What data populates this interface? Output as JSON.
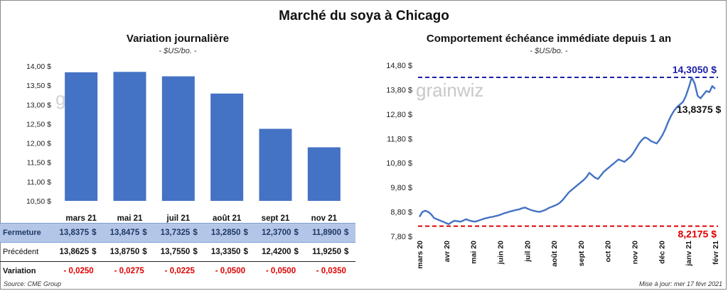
{
  "title": "Marché du soya à Chicago",
  "left_panel": {
    "subtitle": "Variation  journalière",
    "unit": "- $US/bo. -",
    "watermark": "grain"
  },
  "right_panel": {
    "subtitle": "Comportement  échéance immédiate depuis 1 an",
    "unit": "- $US/bo. -",
    "watermark": "grainwiz"
  },
  "chart_data": [
    {
      "type": "bar",
      "categories": [
        "mars 21",
        "mai 21",
        "juil 21",
        "août 21",
        "sept 21",
        "nov 21"
      ],
      "values": [
        13.8375,
        13.8475,
        13.7325,
        13.285,
        12.37,
        11.89
      ],
      "ylim": [
        10.5,
        14.0
      ],
      "yticks": [
        10.5,
        11.0,
        11.5,
        12.0,
        12.5,
        13.0,
        13.5,
        14.0
      ],
      "ytick_labels": [
        "10,50 $",
        "11,00 $",
        "11,50 $",
        "12,00 $",
        "12,50 $",
        "13,00 $",
        "13,50 $",
        "14,00 $"
      ],
      "color": "#4472c4",
      "grid": false
    },
    {
      "type": "line",
      "ylim": [
        7.8,
        14.8
      ],
      "yticks": [
        7.8,
        8.8,
        9.8,
        10.8,
        11.8,
        12.8,
        13.8,
        14.8
      ],
      "ytick_labels": [
        "7,80 $",
        "8,80 $",
        "9,80 $",
        "10,80 $",
        "11,80 $",
        "12,80 $",
        "13,80 $",
        "14,80 $"
      ],
      "x_labels": [
        "mars 20",
        "avr 20",
        "mai 20",
        "juin 20",
        "juil 20",
        "août 20",
        "sept 20",
        "oct 20",
        "nov 20",
        "déc 20",
        "janv 21",
        "févr 21"
      ],
      "color": "#4472c4",
      "series": [
        {
          "values": [
            8.6,
            8.8,
            8.85,
            8.8,
            8.7,
            8.55,
            8.5,
            8.45,
            8.4,
            8.35,
            8.3,
            8.38,
            8.44,
            8.42,
            8.4,
            8.45,
            8.5,
            8.45,
            8.42,
            8.4,
            8.44,
            8.48,
            8.52,
            8.55,
            8.58,
            8.6,
            8.63,
            8.66,
            8.7,
            8.75,
            8.78,
            8.82,
            8.85,
            8.88,
            8.9,
            8.95,
            8.98,
            8.93,
            8.88,
            8.85,
            8.82,
            8.8,
            8.84,
            8.88,
            8.95,
            9.0,
            9.05,
            9.1,
            9.18,
            9.3,
            9.45,
            9.6,
            9.7,
            9.8,
            9.9,
            10.0,
            10.1,
            10.22,
            10.4,
            10.3,
            10.2,
            10.15,
            10.3,
            10.45,
            10.55,
            10.65,
            10.75,
            10.85,
            10.95,
            10.9,
            10.85,
            10.95,
            11.05,
            11.2,
            11.4,
            11.6,
            11.75,
            11.85,
            11.8,
            11.7,
            11.65,
            11.6,
            11.75,
            11.95,
            12.2,
            12.5,
            12.75,
            12.95,
            13.1,
            13.2,
            13.3,
            13.55,
            13.9,
            14.3,
            14.05,
            13.55,
            13.45,
            13.6,
            13.75,
            13.7,
            13.95,
            13.84
          ]
        }
      ],
      "reference_lines": [
        {
          "value": 14.305,
          "label": "14,3050 $",
          "color": "#1f1fa8"
        },
        {
          "value": 8.2175,
          "label": "8,2175 $",
          "color": "#e00000"
        }
      ],
      "last_value_label": "13,8375 $",
      "grid": false
    }
  ],
  "table": {
    "rows": [
      {
        "label": "Fermeture",
        "values": [
          "13,8375",
          "13,8475",
          "13,7325",
          "13,2850",
          "12,3700",
          "11,8900"
        ],
        "suffix": "$"
      },
      {
        "label": "Précédent",
        "values": [
          "13,8625",
          "13,8750",
          "13,7550",
          "13,3350",
          "12,4200",
          "11,9250"
        ],
        "suffix": "$"
      },
      {
        "label": "Variation",
        "values": [
          "- 0,0250",
          "- 0,0275",
          "- 0,0225",
          "- 0,0500",
          "- 0,0500",
          "- 0,0350"
        ]
      }
    ]
  },
  "source": "Source: CME Group",
  "updated": "Mise à jour: mer 17 févr 2021"
}
